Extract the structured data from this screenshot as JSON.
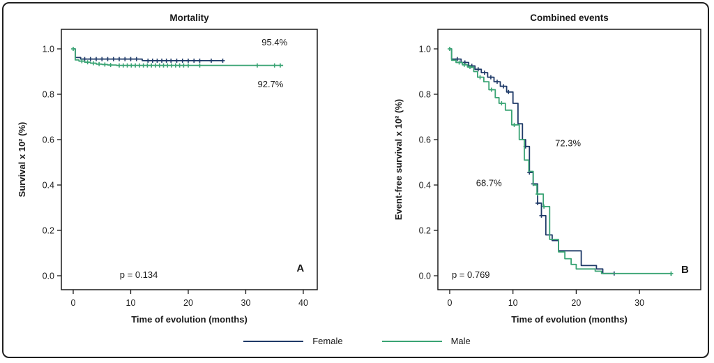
{
  "figure": {
    "kind": "kaplan-meier-figure",
    "background": "#ffffff",
    "frame_color": "#1f1f1f"
  },
  "palette": {
    "female": "#1f3a68",
    "male": "#3aa474",
    "axis": "#1a1a1a"
  },
  "legend": {
    "items": [
      {
        "label": "Female",
        "color_key": "female"
      },
      {
        "label": "Male",
        "color_key": "male"
      }
    ]
  },
  "chart_data": {
    "type": "line",
    "subtype": "kaplan-meier-step",
    "legend_position": "bottom-center",
    "grid": false,
    "panels": [
      {
        "id": "A",
        "title": "Mortality",
        "xlabel": "Time of evolution (months)",
        "ylabel": "Survival x 10² (%)",
        "xticks": [
          0,
          10,
          20,
          30,
          40
        ],
        "yticks": [
          "0.0",
          "0.2",
          "0.4",
          "0.6",
          "0.8",
          "1.0"
        ],
        "xlim": [
          -2.06,
          42.43
        ],
        "ylim": [
          -0.0615,
          1.0862
        ],
        "p_value": "p = 0.134",
        "p_pos": [
          8.1,
          0.005
        ],
        "letter": "A",
        "letter_pos": [
          39.5,
          0.034
        ],
        "annotations": [
          {
            "text": "95.4%",
            "x": 35.0,
            "y": 1.03
          },
          {
            "text": "92.7%",
            "x": 34.3,
            "y": 0.845
          }
        ],
        "series": [
          {
            "name": "Female",
            "color_key": "female",
            "final_value_pct": 95.4,
            "points": [
              [
                0,
                1
              ],
              [
                0.35,
                1
              ],
              [
                0.35,
                0.962
              ],
              [
                1.3,
                0.962
              ],
              [
                1.3,
                0.955
              ],
              [
                12,
                0.955
              ],
              [
                12,
                0.948
              ],
              [
                26,
                0.948
              ]
            ],
            "censors": [
              [
                2,
                0.955
              ],
              [
                3,
                0.955
              ],
              [
                4,
                0.955
              ],
              [
                5,
                0.955
              ],
              [
                6,
                0.955
              ],
              [
                7,
                0.955
              ],
              [
                8,
                0.955
              ],
              [
                9,
                0.955
              ],
              [
                10,
                0.955
              ],
              [
                11,
                0.955
              ],
              [
                13,
                0.948
              ],
              [
                13.8,
                0.948
              ],
              [
                14.6,
                0.948
              ],
              [
                15.4,
                0.948
              ],
              [
                16.2,
                0.948
              ],
              [
                17,
                0.948
              ],
              [
                18,
                0.948
              ],
              [
                19,
                0.948
              ],
              [
                20,
                0.948
              ],
              [
                21,
                0.948
              ],
              [
                22,
                0.948
              ],
              [
                24,
                0.948
              ],
              [
                26,
                0.948
              ]
            ]
          },
          {
            "name": "Male",
            "color_key": "male",
            "final_value_pct": 92.7,
            "points": [
              [
                0,
                1
              ],
              [
                0.35,
                1
              ],
              [
                0.35,
                0.951
              ],
              [
                1,
                0.951
              ],
              [
                1,
                0.946
              ],
              [
                2,
                0.946
              ],
              [
                2,
                0.941
              ],
              [
                3,
                0.941
              ],
              [
                3,
                0.937
              ],
              [
                4,
                0.937
              ],
              [
                4,
                0.933
              ],
              [
                5,
                0.933
              ],
              [
                5,
                0.931
              ],
              [
                6,
                0.931
              ],
              [
                6,
                0.929
              ],
              [
                7.5,
                0.929
              ],
              [
                7.5,
                0.927
              ],
              [
                36.5,
                0.927
              ]
            ],
            "censors": [
              [
                0,
                1
              ],
              [
                1.5,
                0.946
              ],
              [
                2.5,
                0.941
              ],
              [
                3.5,
                0.937
              ],
              [
                4.5,
                0.933
              ],
              [
                5.5,
                0.931
              ],
              [
                6.5,
                0.929
              ],
              [
                8,
                0.927
              ],
              [
                8.7,
                0.927
              ],
              [
                9.4,
                0.927
              ],
              [
                10.1,
                0.927
              ],
              [
                10.8,
                0.927
              ],
              [
                11.5,
                0.927
              ],
              [
                12.2,
                0.927
              ],
              [
                12.9,
                0.927
              ],
              [
                13.6,
                0.927
              ],
              [
                14.3,
                0.927
              ],
              [
                15,
                0.927
              ],
              [
                15.7,
                0.927
              ],
              [
                16.4,
                0.927
              ],
              [
                17.1,
                0.927
              ],
              [
                17.8,
                0.927
              ],
              [
                18.5,
                0.927
              ],
              [
                19.2,
                0.927
              ],
              [
                20,
                0.927
              ],
              [
                22,
                0.927
              ],
              [
                32,
                0.927
              ],
              [
                35,
                0.927
              ],
              [
                36,
                0.927
              ]
            ]
          }
        ]
      },
      {
        "id": "B",
        "title": "Combined events",
        "xlabel": "Time of evolution (months)",
        "ylabel": "Event-free survival x 10² (%)",
        "xticks": [
          0,
          10,
          20,
          30
        ],
        "yticks": [
          "0.0",
          "0.2",
          "0.4",
          "0.6",
          "0.8",
          "1.0"
        ],
        "xlim": [
          -1.87,
          39.69
        ],
        "ylim": [
          -0.0615,
          1.0862
        ],
        "p_value": "p = 0.769",
        "p_pos": [
          0.33,
          0.005
        ],
        "letter": "B",
        "letter_pos": [
          37.2,
          0.028
        ],
        "annotations": [
          {
            "text": "72.3%",
            "x": 18.7,
            "y": 0.585
          },
          {
            "text": "68.7%",
            "x": 6.2,
            "y": 0.41
          }
        ],
        "series": [
          {
            "name": "Female",
            "color_key": "female",
            "points": [
              [
                0,
                1
              ],
              [
                0.3,
                1
              ],
              [
                0.3,
                0.955
              ],
              [
                1.8,
                0.955
              ],
              [
                1.8,
                0.94
              ],
              [
                3,
                0.94
              ],
              [
                3,
                0.925
              ],
              [
                4,
                0.925
              ],
              [
                4,
                0.91
              ],
              [
                5,
                0.91
              ],
              [
                5,
                0.895
              ],
              [
                6,
                0.895
              ],
              [
                6,
                0.875
              ],
              [
                7,
                0.875
              ],
              [
                7,
                0.855
              ],
              [
                8,
                0.855
              ],
              [
                8,
                0.835
              ],
              [
                9,
                0.835
              ],
              [
                9,
                0.81
              ],
              [
                10,
                0.81
              ],
              [
                10,
                0.76
              ],
              [
                10.8,
                0.76
              ],
              [
                10.8,
                0.67
              ],
              [
                11.5,
                0.67
              ],
              [
                11.5,
                0.6
              ],
              [
                12,
                0.6
              ],
              [
                12,
                0.57
              ],
              [
                12.6,
                0.57
              ],
              [
                12.6,
                0.455
              ],
              [
                13.2,
                0.455
              ],
              [
                13.2,
                0.405
              ],
              [
                13.9,
                0.405
              ],
              [
                13.9,
                0.32
              ],
              [
                14.5,
                0.32
              ],
              [
                14.5,
                0.265
              ],
              [
                15.2,
                0.265
              ],
              [
                15.2,
                0.18
              ],
              [
                16.2,
                0.18
              ],
              [
                16.2,
                0.155
              ],
              [
                17.2,
                0.155
              ],
              [
                17.2,
                0.11
              ],
              [
                20.8,
                0.11
              ],
              [
                20.8,
                0.045
              ],
              [
                23.2,
                0.045
              ],
              [
                23.2,
                0.03
              ],
              [
                24.2,
                0.03
              ],
              [
                24.2,
                0.01
              ],
              [
                26,
                0.01
              ]
            ],
            "censors": [
              [
                1.2,
                0.955
              ],
              [
                2.4,
                0.94
              ],
              [
                3.5,
                0.925
              ],
              [
                4.5,
                0.91
              ],
              [
                5.5,
                0.895
              ],
              [
                6.5,
                0.875
              ],
              [
                7.5,
                0.855
              ],
              [
                8.5,
                0.835
              ],
              [
                9.3,
                0.81
              ],
              [
                12,
                0.57
              ],
              [
                12.6,
                0.455
              ],
              [
                13.2,
                0.405
              ],
              [
                13.9,
                0.32
              ],
              [
                14.5,
                0.265
              ],
              [
                26,
                0.01
              ]
            ]
          },
          {
            "name": "Male",
            "color_key": "male",
            "points": [
              [
                0,
                1
              ],
              [
                0.3,
                1
              ],
              [
                0.3,
                0.95
              ],
              [
                1,
                0.95
              ],
              [
                1,
                0.94
              ],
              [
                2,
                0.94
              ],
              [
                2,
                0.93
              ],
              [
                2.8,
                0.93
              ],
              [
                2.8,
                0.92
              ],
              [
                3.8,
                0.92
              ],
              [
                3.8,
                0.9
              ],
              [
                4.4,
                0.9
              ],
              [
                4.4,
                0.875
              ],
              [
                5.4,
                0.875
              ],
              [
                5.4,
                0.855
              ],
              [
                6.2,
                0.855
              ],
              [
                6.2,
                0.82
              ],
              [
                7.2,
                0.82
              ],
              [
                7.2,
                0.785
              ],
              [
                7.8,
                0.785
              ],
              [
                7.8,
                0.76
              ],
              [
                8.8,
                0.76
              ],
              [
                8.8,
                0.73
              ],
              [
                9.8,
                0.73
              ],
              [
                9.8,
                0.665
              ],
              [
                11,
                0.665
              ],
              [
                11,
                0.6
              ],
              [
                11.8,
                0.6
              ],
              [
                11.8,
                0.51
              ],
              [
                12.5,
                0.51
              ],
              [
                12.5,
                0.46
              ],
              [
                13.2,
                0.46
              ],
              [
                13.2,
                0.4
              ],
              [
                13.8,
                0.4
              ],
              [
                13.8,
                0.36
              ],
              [
                14.8,
                0.36
              ],
              [
                14.8,
                0.305
              ],
              [
                15.8,
                0.305
              ],
              [
                15.8,
                0.16
              ],
              [
                17.2,
                0.16
              ],
              [
                17.2,
                0.105
              ],
              [
                18.2,
                0.105
              ],
              [
                18.2,
                0.075
              ],
              [
                19.2,
                0.075
              ],
              [
                19.2,
                0.05
              ],
              [
                20,
                0.05
              ],
              [
                20,
                0.03
              ],
              [
                23,
                0.03
              ],
              [
                23,
                0.02
              ],
              [
                24,
                0.02
              ],
              [
                24,
                0.01
              ],
              [
                35,
                0.01
              ],
              [
                35,
                0
              ]
            ],
            "censors": [
              [
                0,
                1
              ],
              [
                1.5,
                0.94
              ],
              [
                2.3,
                0.93
              ],
              [
                3.2,
                0.92
              ],
              [
                4.8,
                0.875
              ],
              [
                6.6,
                0.82
              ],
              [
                8.2,
                0.76
              ],
              [
                10.2,
                0.665
              ],
              [
                13.9,
                0.36
              ],
              [
                14.9,
                0.305
              ],
              [
                35,
                0.01
              ]
            ]
          }
        ]
      }
    ]
  }
}
